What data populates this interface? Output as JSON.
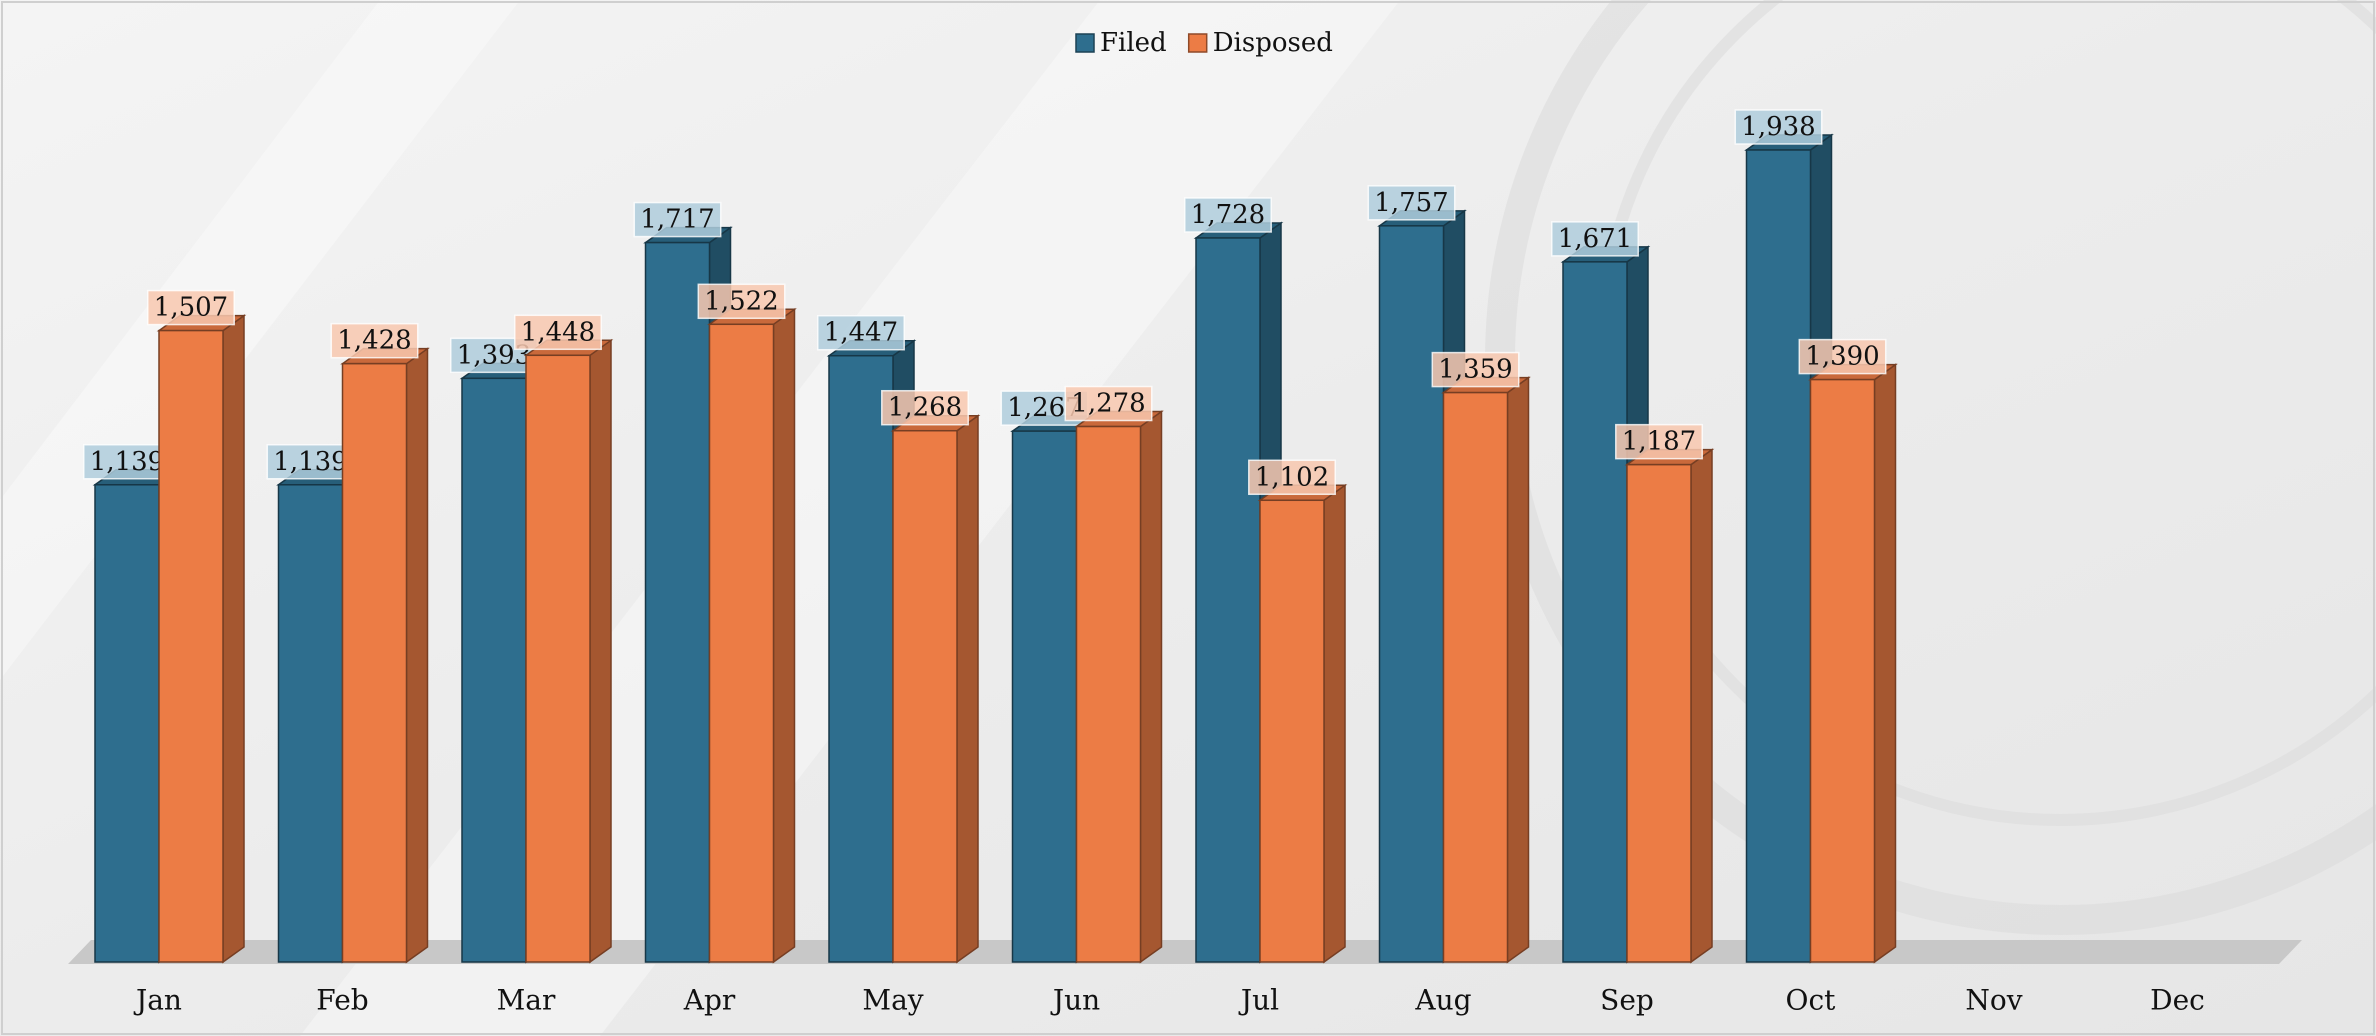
{
  "chart_data": {
    "type": "bar",
    "categories": [
      "Jan",
      "Feb",
      "Mar",
      "Apr",
      "May",
      "Jun",
      "Jul",
      "Aug",
      "Sep",
      "Oct",
      "Nov",
      "Dec"
    ],
    "series": [
      {
        "name": "Filed",
        "color": "#2e6e8e",
        "values": [
          1139,
          1139,
          1393,
          1717,
          1447,
          1267,
          1728,
          1757,
          1671,
          1938,
          null,
          null
        ],
        "value_labels": [
          "1,139",
          "1,139",
          "1,393",
          "1,717",
          "1,447",
          "1,267",
          "1,728",
          "1,757",
          "1,671",
          "1,938",
          null,
          null
        ]
      },
      {
        "name": "Disposed",
        "color": "#ec7c45",
        "values": [
          1507,
          1428,
          1448,
          1522,
          1268,
          1278,
          1102,
          1359,
          1187,
          1390,
          null,
          null
        ],
        "value_labels": [
          "1,507",
          "1,428",
          "1,448",
          "1,522",
          "1,268",
          "1,278",
          "1,102",
          "1,359",
          "1,187",
          "1,390",
          null,
          null
        ]
      }
    ],
    "legend": "top"
  }
}
